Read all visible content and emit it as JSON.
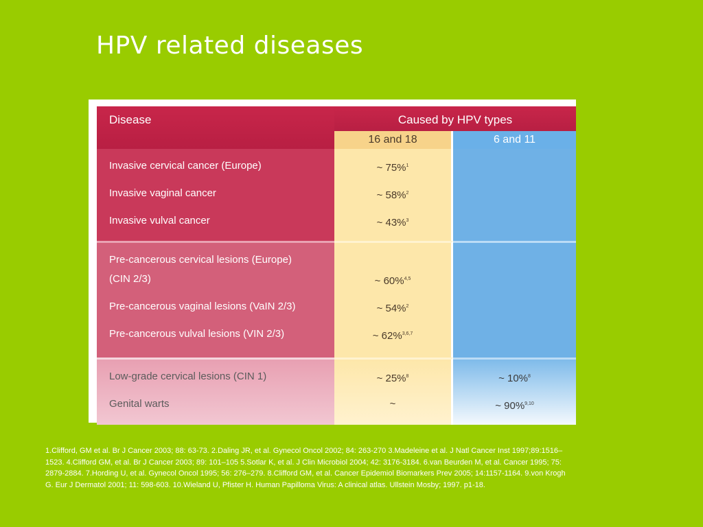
{
  "title": "HPV related diseases",
  "table": {
    "header_disease": "Disease",
    "header_caused": "Caused by HPV types",
    "col1_label": "16 and 18",
    "col2_label": "6 and 11",
    "band1": [
      {
        "name": "Invasive cervical cancer (Europe)",
        "v1": "~ 75%",
        "v1_ref": "1",
        "v2": "",
        "v2_ref": ""
      },
      {
        "name": "Invasive vaginal cancer",
        "v1": "~ 58%",
        "v1_ref": "2",
        "v2": "",
        "v2_ref": ""
      },
      {
        "name": "Invasive vulval cancer",
        "v1": "~ 43%",
        "v1_ref": "3",
        "v2": "",
        "v2_ref": ""
      }
    ],
    "band2": [
      {
        "name": "Pre-cancerous cervical lesions (Europe)",
        "v1": "",
        "v1_ref": "",
        "v2": "",
        "v2_ref": ""
      },
      {
        "name": "(CIN 2/3)",
        "v1": "~ 60%",
        "v1_ref": "4,5",
        "v2": "",
        "v2_ref": ""
      },
      {
        "name": "Pre-cancerous vaginal lesions (VaIN 2/3)",
        "v1": "~ 54%",
        "v1_ref": "2",
        "v2": "",
        "v2_ref": ""
      },
      {
        "name": "Pre-cancerous vulval lesions (VIN 2/3)",
        "v1": "~ 62%",
        "v1_ref": "3,6,7",
        "v2": "",
        "v2_ref": ""
      }
    ],
    "band3": [
      {
        "name": "Low-grade cervical lesions (CIN 1)",
        "v1": "~ 25%",
        "v1_ref": "8",
        "v2": "~ 10%",
        "v2_ref": "8"
      },
      {
        "name": "Genital warts",
        "v1": "~",
        "v1_ref": "",
        "v2": "~ 90%",
        "v2_ref": "9,10"
      }
    ]
  },
  "references": "1.Clifford, GM et al. Br J Cancer 2003; 88: 63-73. 2.Daling JR, et al. Gynecol Oncol 2002; 84: 263-270 3.Madeleine et al. J Natl Cancer Inst 1997;89:1516–1523. 4.Clifford GM, et al. Br J Cancer 2003; 89: 101–105 5.Sotlar K, et al. J Clin Microbiol 2004; 42: 3176-3184. 6.van Beurden M, et al. Cancer 1995; 75: 2879-2884. 7.Hording U, et al. Gynecol Oncol 1995; 56: 276–279. 8.Clifford GM, et al. Cancer Epidemiol Biomarkers Prev 2005; 14:1157-1164. 9.von Krogh G. Eur J Dermatol 2001; 11: 598-603. 10.Wieland U, Pfister H. Human Papilloma Virus: A clinical atlas. Ullstein Mosby; 1997. p1-18.",
  "colors": {
    "background": "#99cc00",
    "header": "#c8264a",
    "col1": "#fde7aa",
    "col2": "#6fb1e6"
  }
}
